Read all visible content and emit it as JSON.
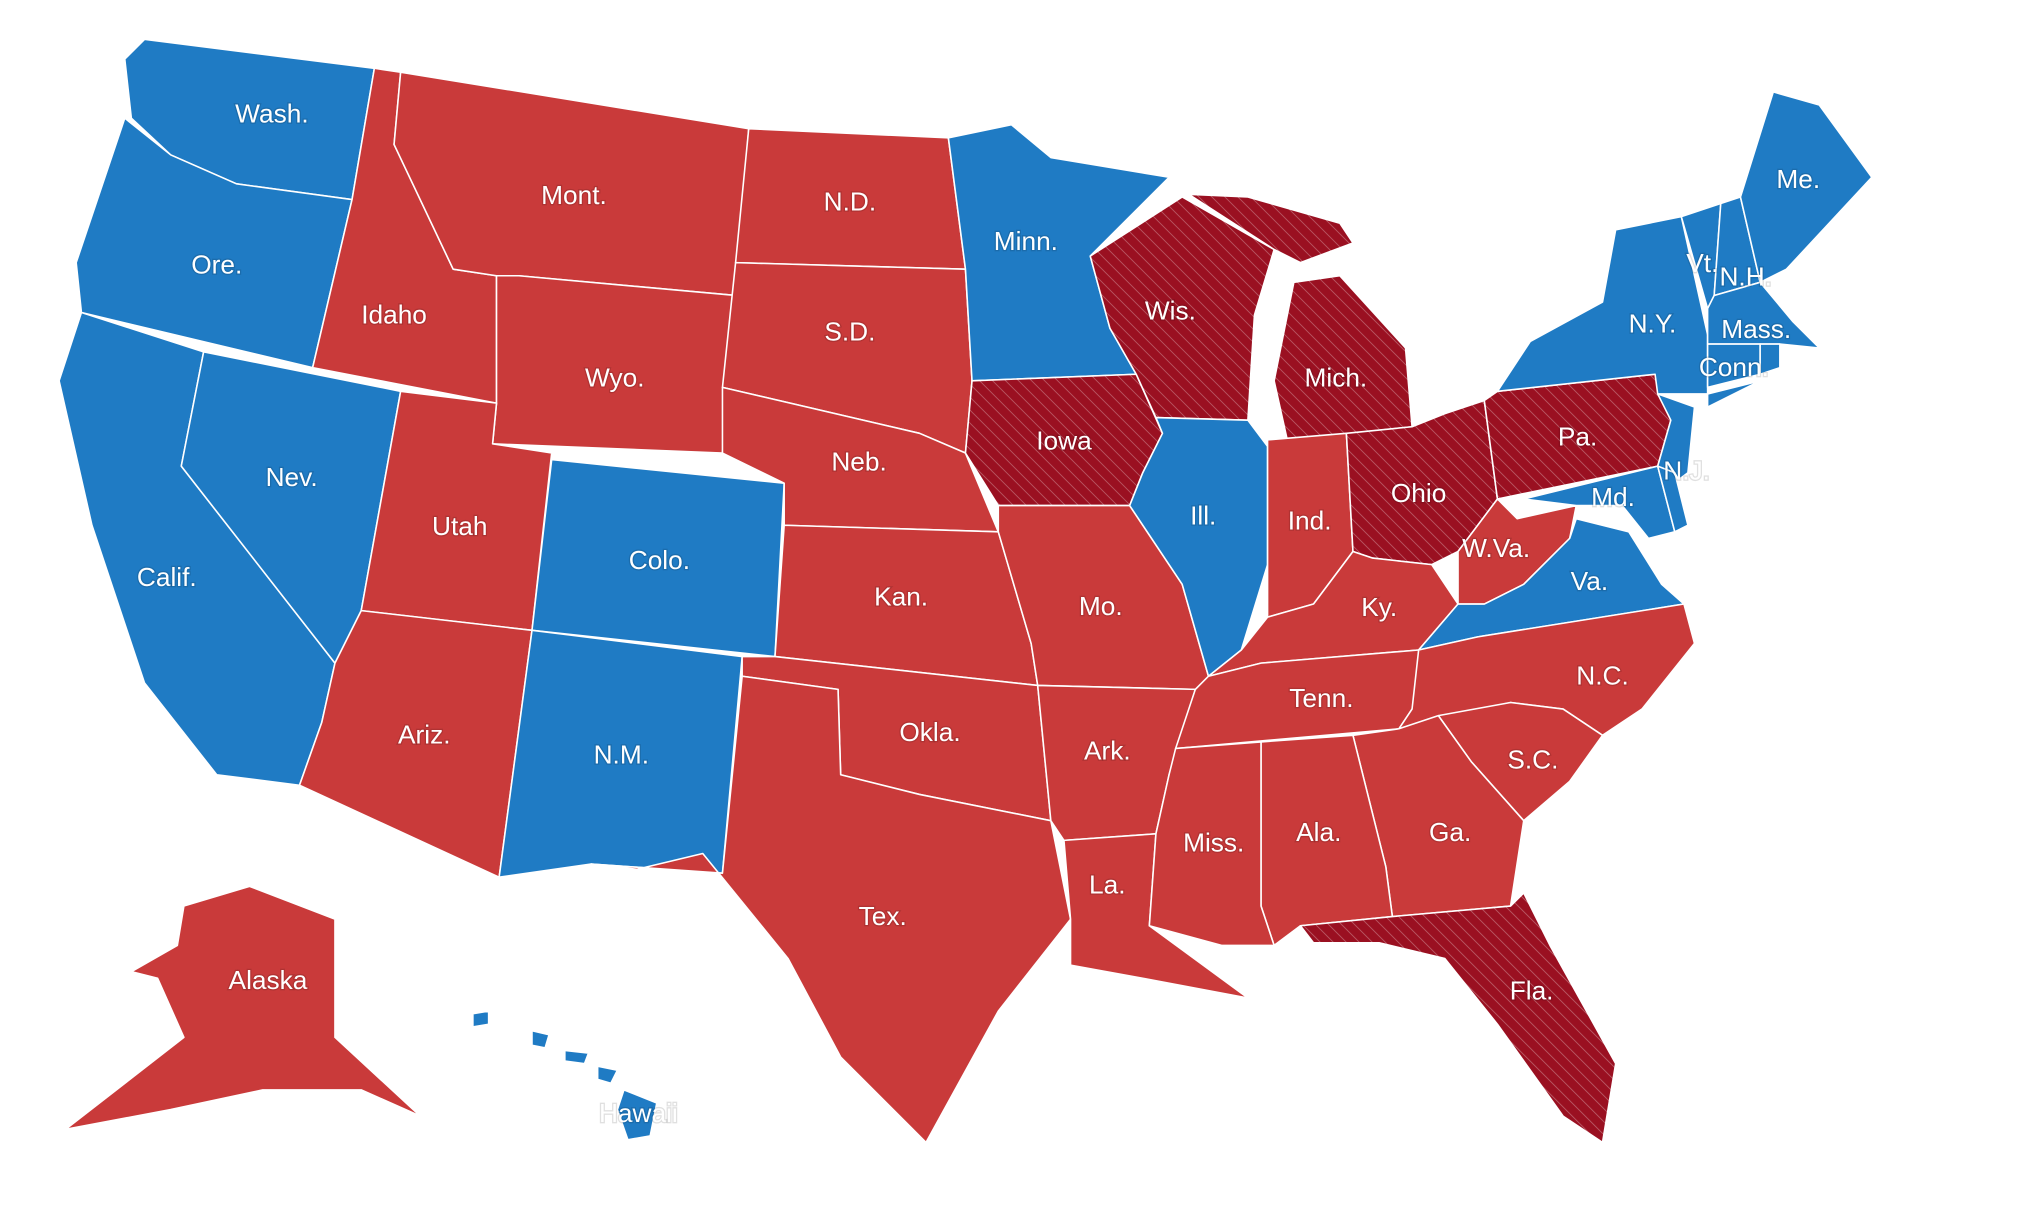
{
  "map": {
    "states": [
      {
        "label": "Wash.",
        "color": "#1f7bc4"
      },
      {
        "label": "Ore.",
        "color": "#1f7bc4"
      },
      {
        "label": "Calif.",
        "color": "#1f7bc4"
      },
      {
        "label": "Nev.",
        "color": "#1f7bc4"
      },
      {
        "label": "Idaho",
        "color": "#c93a3a"
      },
      {
        "label": "Mont.",
        "color": "#c93a3a"
      },
      {
        "label": "Wyo.",
        "color": "#c93a3a"
      },
      {
        "label": "Utah",
        "color": "#c93a3a"
      },
      {
        "label": "Colo.",
        "color": "#1f7bc4"
      },
      {
        "label": "Ariz.",
        "color": "#c93a3a"
      },
      {
        "label": "N.M.",
        "color": "#1f7bc4"
      },
      {
        "label": "N.D.",
        "color": "#c93a3a"
      },
      {
        "label": "S.D.",
        "color": "#c93a3a"
      },
      {
        "label": "Neb.",
        "color": "#c93a3a"
      },
      {
        "label": "Kan.",
        "color": "#c93a3a"
      },
      {
        "label": "Okla.",
        "color": "#c93a3a"
      },
      {
        "label": "Tex.",
        "color": "#c93a3a"
      },
      {
        "label": "Minn.",
        "color": "#1f7bc4"
      },
      {
        "label": "Iowa",
        "color": "#9a1021",
        "hatch": true
      },
      {
        "label": "Mo.",
        "color": "#c93a3a"
      },
      {
        "label": "Ark.",
        "color": "#c93a3a"
      },
      {
        "label": "La.",
        "color": "#c93a3a"
      },
      {
        "label": "Wis.",
        "color": "#9a1021",
        "hatch": true
      },
      {
        "label": "Ill.",
        "color": "#1f7bc4"
      },
      {
        "label": "Mich.",
        "color": "#9a1021",
        "hatch": true
      },
      {
        "label": "Ind.",
        "color": "#c93a3a"
      },
      {
        "label": "Ohio",
        "color": "#9a1021",
        "hatch": true
      },
      {
        "label": "Ky.",
        "color": "#c93a3a"
      },
      {
        "label": "Tenn.",
        "color": "#c93a3a"
      },
      {
        "label": "W.Va.",
        "color": "#c93a3a"
      },
      {
        "label": "Va.",
        "color": "#1f7bc4"
      },
      {
        "label": "N.C.",
        "color": "#c93a3a"
      },
      {
        "label": "S.C.",
        "color": "#c93a3a"
      },
      {
        "label": "Ga.",
        "color": "#c93a3a"
      },
      {
        "label": "Ala.",
        "color": "#c93a3a"
      },
      {
        "label": "Miss.",
        "color": "#c93a3a"
      },
      {
        "label": "Fla.",
        "color": "#9a1021",
        "hatch": true
      },
      {
        "label": "Pa.",
        "color": "#9a1021",
        "hatch": true
      },
      {
        "label": "N.Y.",
        "color": "#1f7bc4"
      },
      {
        "label": "N.J.",
        "color": "#1f7bc4"
      },
      {
        "label": "Md.",
        "color": "#1f7bc4"
      },
      {
        "label": null,
        "color": "#1f7bc4"
      },
      {
        "label": "Vt.",
        "color": "#1f7bc4"
      },
      {
        "label": "N.H.",
        "color": "#1f7bc4"
      },
      {
        "label": "Me.",
        "color": "#1f7bc4"
      },
      {
        "label": "Mass.",
        "color": "#1f7bc4"
      },
      {
        "label": "Conn.",
        "color": "#1f7bc4"
      },
      {
        "label": null,
        "color": "#1f7bc4"
      },
      {
        "label": "Alaska",
        "color": "#c93a3a"
      },
      {
        "label": "Hawaii",
        "color": "#1f7bc4"
      }
    ]
  }
}
